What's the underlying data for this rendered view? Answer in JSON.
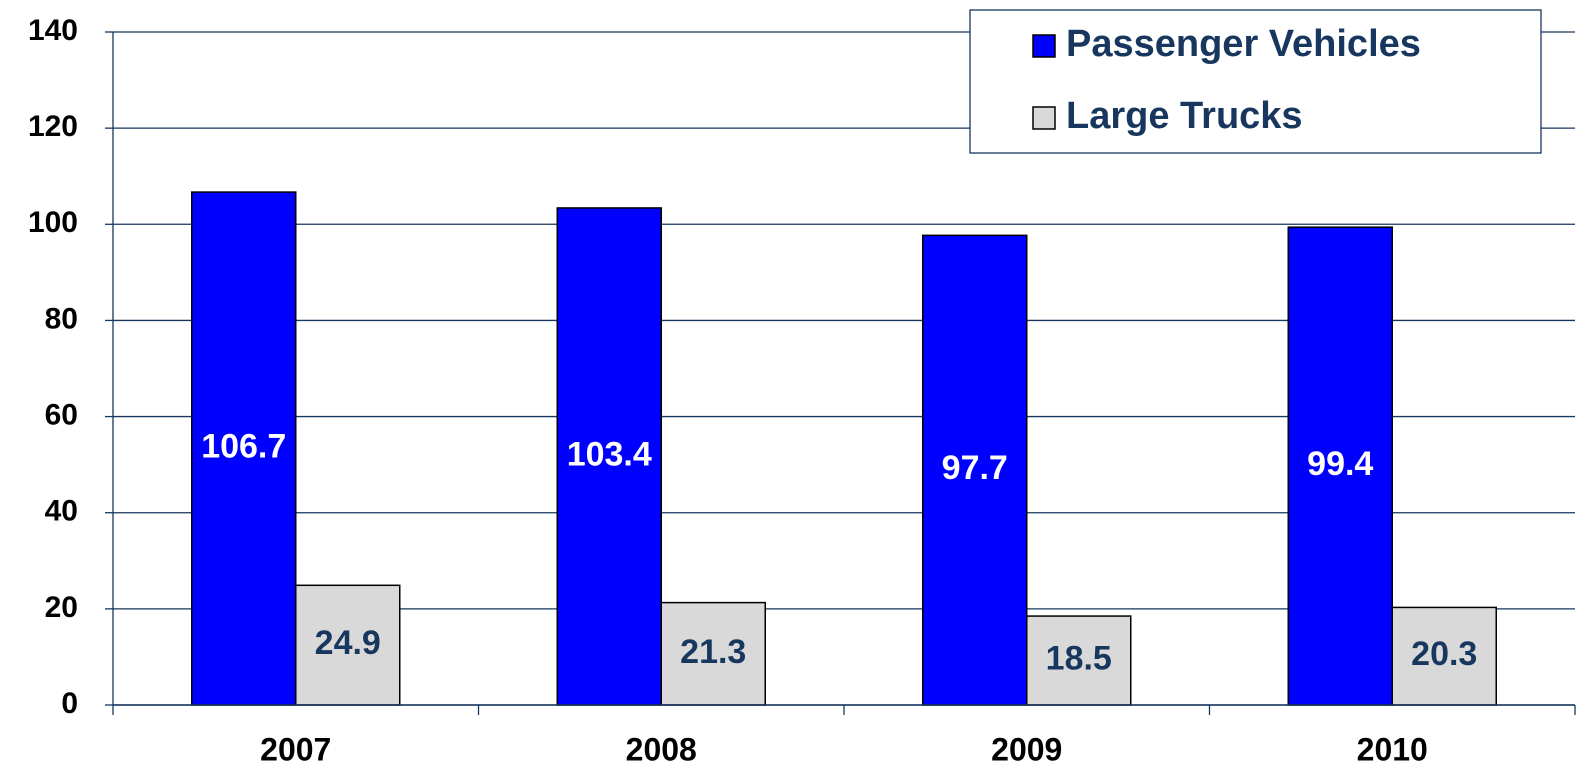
{
  "chart_data": {
    "type": "bar",
    "categories": [
      "2007",
      "2008",
      "2009",
      "2010"
    ],
    "series": [
      {
        "name": "Passenger Vehicles",
        "color": "#0000ff",
        "label_color": "#ffffff",
        "values": [
          106.7,
          103.4,
          97.7,
          99.4
        ]
      },
      {
        "name": "Large Trucks",
        "color": "#d9d9d9",
        "label_color": "#17375e",
        "values": [
          24.9,
          21.3,
          18.5,
          20.3
        ]
      }
    ],
    "ylim": [
      0,
      140
    ],
    "yticks": [
      0,
      20,
      40,
      60,
      80,
      100,
      120,
      140
    ],
    "grid": true,
    "legend": "top-right"
  }
}
